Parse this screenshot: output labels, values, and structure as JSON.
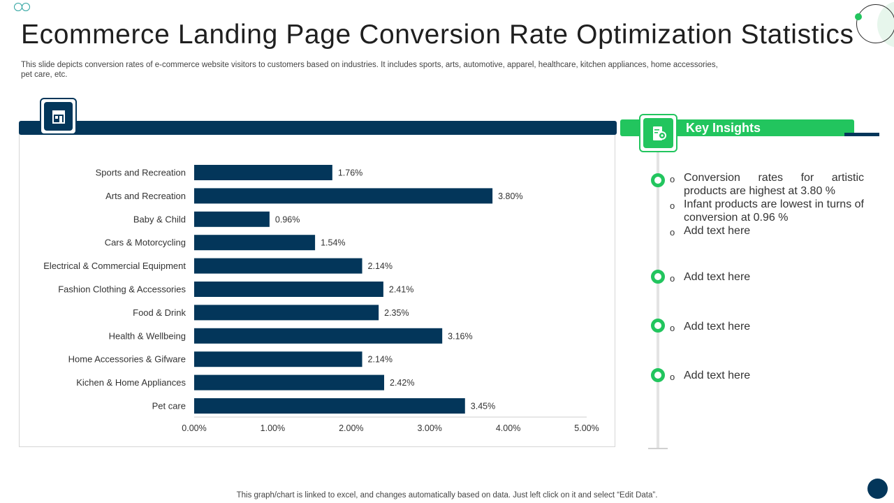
{
  "title": "Ecommerce Landing Page Conversion Rate Optimization Statistics",
  "subtitle": "This slide depicts conversion rates of e-commerce website visitors to customers based on industries. It includes sports, arts, automotive, apparel, healthcare, kitchen appliances, home accessories, pet care, etc.",
  "footnote": "This graph/chart is linked to excel,  and changes automatically based on data. Just left click on it and select “Edit Data”.",
  "colors": {
    "navy": "#03365a",
    "green": "#22c55e",
    "bar": "#03365a"
  },
  "icons": {
    "chart_icon": "shop-icon",
    "insights_icon": "document-gear-icon"
  },
  "chart_data": {
    "type": "bar",
    "orientation": "horizontal",
    "title": "",
    "xlabel": "",
    "ylabel": "",
    "categories": [
      "Sports and Recreation",
      "Arts and Recreation",
      "Baby & Child",
      "Cars & Motorcycling",
      "Electrical & Commercial Equipment",
      "Fashion Clothing & Accessories",
      "Food & Drink",
      "Health & Wellbeing",
      "Home Accessories & Gifware",
      "Kichen & Home Appliances",
      "Pet care"
    ],
    "values": [
      1.76,
      3.8,
      0.96,
      1.54,
      2.14,
      2.41,
      2.35,
      3.16,
      2.14,
      2.42,
      3.45
    ],
    "value_labels": [
      "1.76%",
      "3.80%",
      "0.96%",
      "1.54%",
      "2.14%",
      "2.41%",
      "2.35%",
      "3.16%",
      "2.14%",
      "2.42%",
      "3.45%"
    ],
    "xlim": [
      0,
      5
    ],
    "xticks": [
      0,
      1,
      2,
      3,
      4,
      5
    ],
    "xtick_labels": [
      "0.00%",
      "1.00%",
      "2.00%",
      "3.00%",
      "4.00%",
      "5.00%"
    ],
    "grid": false,
    "legend": "none"
  },
  "insights": {
    "title": "Key Insights",
    "groups": [
      {
        "items": [
          "Conversion rates for artistic products are highest at 3.80 %",
          "Infant products are lowest in turns of conversion at 0.96 %",
          "Add text here"
        ]
      },
      {
        "items": [
          "Add text here"
        ]
      },
      {
        "items": [
          "Add text here"
        ]
      },
      {
        "items": [
          "Add text here"
        ]
      }
    ],
    "bullet_glyph": "o"
  }
}
